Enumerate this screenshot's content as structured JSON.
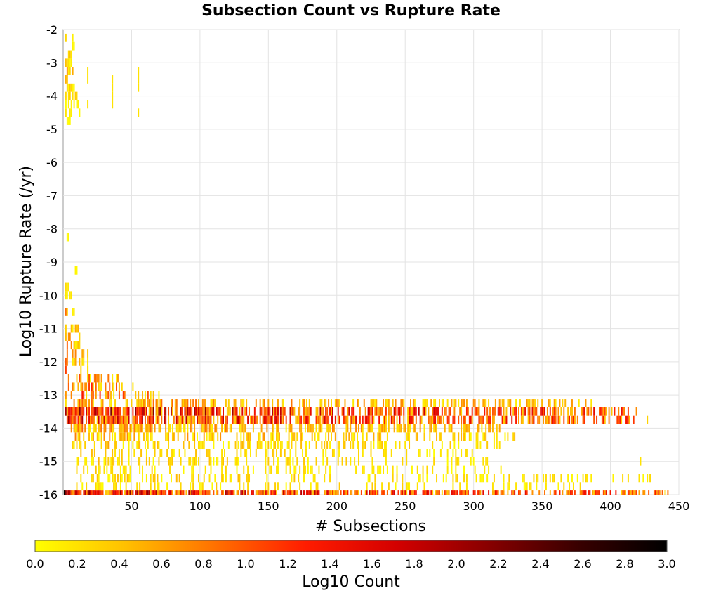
{
  "chart_data": {
    "type": "heatmap",
    "title": "Subsection Count vs Rupture Rate",
    "xlabel": "# Subsections",
    "ylabel": "Log10 Rupture Rate (/yr)",
    "xlim": [
      0,
      450
    ],
    "ylim": [
      -16,
      -2
    ],
    "x_ticks": [
      50,
      100,
      150,
      200,
      250,
      300,
      350,
      400,
      450
    ],
    "y_ticks": [
      -2,
      -3,
      -4,
      -5,
      -6,
      -7,
      -8,
      -9,
      -10,
      -11,
      -12,
      -13,
      -14,
      -15,
      -16
    ],
    "grid": true,
    "colorbar": {
      "label": "Log10 Count",
      "range": [
        0.0,
        3.0
      ],
      "ticks": [
        "0.0",
        "0.2",
        "0.4",
        "0.6",
        "0.8",
        "1.0",
        "1.2",
        "1.4",
        "1.6",
        "1.8",
        "2.0",
        "2.2",
        "2.4",
        "2.6",
        "2.8",
        "3.0"
      ],
      "colors": [
        "#ffff00",
        "#ffc000",
        "#ff7000",
        "#ff1c00",
        "#d40000",
        "#8a0000",
        "#3a0000",
        "#000000"
      ]
    },
    "bands": [
      {
        "y": -16,
        "x_range": [
          1,
          443
        ],
        "level_range": [
          0.3,
          2.2
        ],
        "density": 0.9
      },
      {
        "y": -15.75,
        "x_range": [
          10,
          380
        ],
        "level_range": [
          0.0,
          0.5
        ],
        "density": 0.25
      },
      {
        "y": -15.5,
        "x_range": [
          10,
          430
        ],
        "level_range": [
          0.0,
          0.5
        ],
        "density": 0.3
      },
      {
        "y": -15.25,
        "x_range": [
          10,
          330
        ],
        "level_range": [
          0.0,
          0.4
        ],
        "density": 0.3
      },
      {
        "y": -15,
        "x_range": [
          10,
          310
        ],
        "level_range": [
          0.0,
          0.5
        ],
        "density": 0.35
      },
      {
        "y": -14.75,
        "x_range": [
          10,
          300
        ],
        "level_range": [
          0.0,
          0.5
        ],
        "density": 0.35
      },
      {
        "y": -14.5,
        "x_range": [
          5,
          320
        ],
        "level_range": [
          0.0,
          0.6
        ],
        "density": 0.4
      },
      {
        "y": -14.25,
        "x_range": [
          5,
          330
        ],
        "level_range": [
          0.0,
          0.8
        ],
        "density": 0.5
      },
      {
        "y": -14,
        "x_range": [
          5,
          320
        ],
        "level_range": [
          0.1,
          1.0
        ],
        "density": 0.65
      },
      {
        "y": -13.75,
        "x_range": [
          2,
          420
        ],
        "level_range": [
          0.3,
          2.1
        ],
        "density": 0.8
      },
      {
        "y": -13.5,
        "x_range": [
          2,
          420
        ],
        "level_range": [
          0.3,
          2.3
        ],
        "density": 0.8
      },
      {
        "y": -13.25,
        "x_range": [
          2,
          390
        ],
        "level_range": [
          0.1,
          1.0
        ],
        "density": 0.5
      },
      {
        "y": -13,
        "x_range": [
          2,
          70
        ],
        "level_range": [
          0.0,
          1.6
        ],
        "density": 0.5
      },
      {
        "y": -12.75,
        "x_range": [
          2,
          60
        ],
        "level_range": [
          0.0,
          1.5
        ],
        "density": 0.4
      },
      {
        "y": -12.5,
        "x_range": [
          2,
          40
        ],
        "level_range": [
          0.0,
          1.3
        ],
        "density": 0.45
      },
      {
        "y": -12.25,
        "x_range": [
          2,
          20
        ],
        "level_range": [
          0.0,
          1.3
        ],
        "density": 0.6
      },
      {
        "y": -12,
        "x_range": [
          2,
          18
        ],
        "level_range": [
          0.0,
          1.2
        ],
        "density": 0.6
      },
      {
        "y": -11.75,
        "x_range": [
          2,
          18
        ],
        "level_range": [
          0.0,
          1.1
        ],
        "density": 0.5
      },
      {
        "y": -11.5,
        "x_range": [
          2,
          14
        ],
        "level_range": [
          0.0,
          1.0
        ],
        "density": 0.6
      },
      {
        "y": -11.25,
        "x_range": [
          2,
          12
        ],
        "level_range": [
          0.0,
          1.0
        ],
        "density": 0.5
      },
      {
        "y": -11,
        "x_range": [
          2,
          12
        ],
        "level_range": [
          0.0,
          1.0
        ],
        "density": 0.5
      },
      {
        "y": -10.5,
        "x_range": [
          2,
          8
        ],
        "level_range": [
          0.0,
          0.9
        ],
        "density": 0.6
      },
      {
        "y": -10,
        "x_range": [
          2,
          6
        ],
        "level_range": [
          0.0,
          0.5
        ],
        "density": 0.7
      },
      {
        "y": -9.75,
        "x_range": [
          2,
          4
        ],
        "level_range": [
          0.0,
          0.3
        ],
        "density": 0.9
      },
      {
        "y": -9.25,
        "x_range": [
          9,
          10
        ],
        "level_range": [
          0.0,
          0.1
        ],
        "density": 1.0
      },
      {
        "y": -8.25,
        "x_range": [
          3,
          4
        ],
        "level_range": [
          0.0,
          0.1
        ],
        "density": 1.0
      },
      {
        "y": -4.75,
        "x_range": [
          3,
          5
        ],
        "level_range": [
          0.0,
          0.2
        ],
        "density": 0.6
      },
      {
        "y": -4.5,
        "x_range": [
          2,
          12
        ],
        "level_range": [
          0.0,
          0.3
        ],
        "density": 0.4
      },
      {
        "y": -4.25,
        "x_range": [
          2,
          12
        ],
        "level_range": [
          0.0,
          0.3
        ],
        "density": 0.4
      },
      {
        "y": -4,
        "x_range": [
          2,
          10
        ],
        "level_range": [
          0.0,
          0.6
        ],
        "density": 0.5
      },
      {
        "y": -3.75,
        "x_range": [
          2,
          8
        ],
        "level_range": [
          0.0,
          0.5
        ],
        "density": 0.6
      },
      {
        "y": -3.5,
        "x_range": [
          2,
          8
        ],
        "level_range": [
          0.1,
          1.0
        ],
        "density": 0.7
      },
      {
        "y": -3.25,
        "x_range": [
          2,
          8
        ],
        "level_range": [
          0.0,
          1.2
        ],
        "density": 0.7
      },
      {
        "y": -3,
        "x_range": [
          2,
          8
        ],
        "level_range": [
          0.0,
          0.9
        ],
        "density": 0.7
      },
      {
        "y": -2.75,
        "x_range": [
          2,
          8
        ],
        "level_range": [
          0.0,
          0.6
        ],
        "density": 0.6
      },
      {
        "y": -2.5,
        "x_range": [
          2,
          8
        ],
        "level_range": [
          0.0,
          0.4
        ],
        "density": 0.6
      },
      {
        "y": -2.25,
        "x_range": [
          2,
          7
        ],
        "level_range": [
          0.0,
          0.3
        ],
        "density": 0.5
      }
    ],
    "points": [
      {
        "x": 1,
        "y": -16,
        "level": 3.0
      },
      {
        "x": 18,
        "y": -3.25,
        "level": 0.2
      },
      {
        "x": 18,
        "y": -3.5,
        "level": 0.2
      },
      {
        "x": 18,
        "y": -4.25,
        "level": 0.2
      },
      {
        "x": 36,
        "y": -3.5,
        "level": 0.2
      },
      {
        "x": 36,
        "y": -3.75,
        "level": 0.2
      },
      {
        "x": 36,
        "y": -4.0,
        "level": 0.2
      },
      {
        "x": 36,
        "y": -4.25,
        "level": 0.2
      },
      {
        "x": 55,
        "y": -3.25,
        "level": 0.2
      },
      {
        "x": 55,
        "y": -3.5,
        "level": 0.2
      },
      {
        "x": 55,
        "y": -3.75,
        "level": 0.2
      },
      {
        "x": 55,
        "y": -4.5,
        "level": 0.2
      },
      {
        "x": 18,
        "y": -12.25,
        "level": 0.2
      },
      {
        "x": 18,
        "y": -12.0,
        "level": 0.2
      },
      {
        "x": 18,
        "y": -12.5,
        "level": 0.2
      },
      {
        "x": 36,
        "y": -12.75,
        "level": 0.5
      },
      {
        "x": 35,
        "y": -13.0,
        "level": 0.4
      },
      {
        "x": 45,
        "y": -13.0,
        "level": 0.8
      },
      {
        "x": 55,
        "y": -13.0,
        "level": 0.5
      },
      {
        "x": 422,
        "y": -15.0,
        "level": 0.2
      },
      {
        "x": 427,
        "y": -13.75,
        "level": 0.3
      },
      {
        "x": 440,
        "y": -16.0,
        "level": 0.2
      }
    ]
  }
}
